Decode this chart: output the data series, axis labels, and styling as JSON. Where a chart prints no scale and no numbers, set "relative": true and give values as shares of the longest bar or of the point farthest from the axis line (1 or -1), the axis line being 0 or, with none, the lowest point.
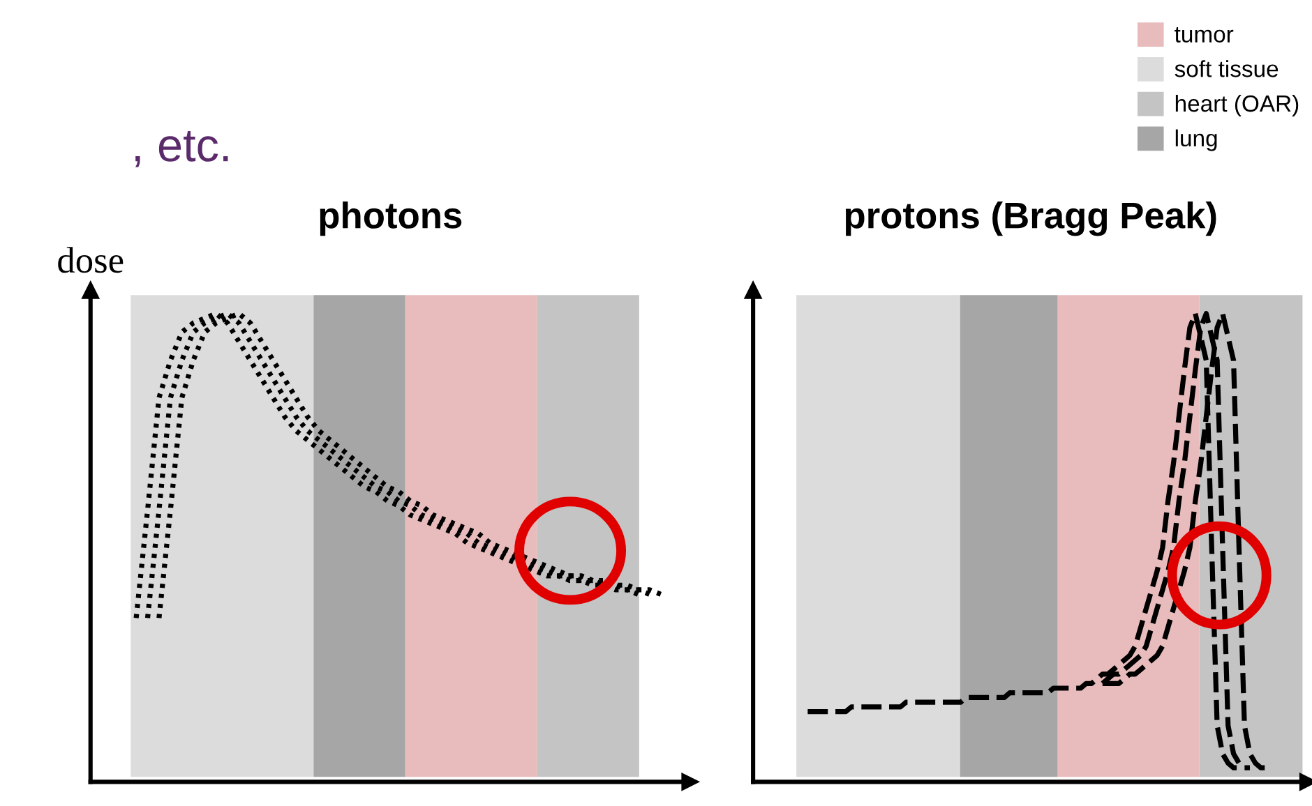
{
  "chart_data": [
    {
      "type": "line",
      "title": "photons",
      "ylabel": "dose",
      "relative": true,
      "tick_labels": false,
      "line_style": "dotted",
      "annotations": [
        ", etc."
      ],
      "categories": [
        null,
        null,
        null,
        null,
        null,
        null,
        null,
        null,
        null,
        null,
        null,
        null,
        null,
        null,
        null,
        null,
        null,
        null,
        null,
        null,
        null,
        null,
        null,
        null,
        null,
        null,
        null,
        null,
        null,
        null,
        null,
        null,
        null,
        null,
        null,
        null,
        null,
        null,
        null,
        null,
        null,
        null,
        null,
        null,
        null,
        null,
        null,
        null,
        null,
        null,
        null
      ],
      "series": [
        {
          "color": "#000000",
          "values": [
            null,
            null,
            null,
            null,
            0.35,
            0.58,
            0.82,
            0.9,
            0.96,
            0.98,
            0.99,
            1.0,
            0.98,
            0.94,
            0.9,
            0.86,
            0.82,
            0.78,
            0.75,
            0.73,
            0.71,
            0.69,
            0.67,
            0.65,
            0.63,
            0.62,
            0.6,
            0.59,
            0.57,
            0.56,
            0.55,
            0.54,
            0.53,
            0.51,
            0.5,
            0.49,
            0.48,
            0.47,
            0.46,
            0.45,
            0.44,
            0.44,
            0.43,
            0.43,
            0.42,
            0.42,
            0.41,
            0.41,
            0.4,
            null,
            null
          ]
        },
        {
          "color": "#000000",
          "values": [
            null,
            null,
            null,
            null,
            null,
            0.35,
            0.58,
            0.82,
            0.9,
            0.96,
            0.98,
            0.99,
            1.0,
            0.98,
            0.94,
            0.9,
            0.86,
            0.82,
            0.78,
            0.75,
            0.73,
            0.71,
            0.69,
            0.67,
            0.65,
            0.63,
            0.62,
            0.6,
            0.59,
            0.57,
            0.56,
            0.55,
            0.54,
            0.53,
            0.51,
            0.5,
            0.49,
            0.48,
            0.47,
            0.46,
            0.45,
            0.44,
            0.44,
            0.43,
            0.43,
            0.42,
            0.42,
            0.41,
            0.41,
            0.4,
            null
          ]
        },
        {
          "color": "#000000",
          "values": [
            null,
            null,
            null,
            null,
            null,
            null,
            0.35,
            0.58,
            0.82,
            0.9,
            0.96,
            0.98,
            0.99,
            1.0,
            0.98,
            0.94,
            0.9,
            0.86,
            0.82,
            0.78,
            0.75,
            0.73,
            0.71,
            0.69,
            0.67,
            0.65,
            0.63,
            0.62,
            0.6,
            0.59,
            0.57,
            0.56,
            0.55,
            0.54,
            0.53,
            0.51,
            0.5,
            0.49,
            0.48,
            0.47,
            0.46,
            0.45,
            0.44,
            0.44,
            0.43,
            0.43,
            0.42,
            0.42,
            0.41,
            0.41,
            0.4
          ]
        }
      ]
    },
    {
      "type": "line",
      "title": "protons (Bragg Peak)",
      "relative": true,
      "tick_labels": false,
      "line_style": "dashed",
      "annotations": [
        "tumor",
        "soft tissue",
        "heart (OAR)",
        "lung"
      ],
      "categories": [
        null,
        null,
        null,
        null,
        null,
        null,
        null,
        null,
        null,
        null,
        null,
        null,
        null,
        null,
        null,
        null,
        null,
        null,
        null,
        null,
        null,
        null,
        null,
        null,
        null,
        null,
        null,
        null,
        null,
        null,
        null,
        null,
        null,
        null,
        null,
        null,
        null,
        null,
        null,
        null,
        null,
        null,
        null,
        null,
        null,
        null,
        null,
        null,
        null,
        null,
        null,
        null,
        null,
        null,
        null,
        null,
        null,
        null,
        null,
        null,
        null,
        null,
        null,
        null,
        null,
        null,
        null,
        null,
        null,
        null,
        null,
        null,
        null,
        null,
        null,
        null,
        null,
        null,
        null,
        null,
        null,
        null,
        null,
        null,
        null,
        null,
        null,
        null,
        null,
        null,
        null,
        null,
        null,
        null,
        null
      ],
      "series": [
        {
          "color": "#000000",
          "values": [
            null,
            null,
            null,
            null,
            null,
            null,
            null,
            null,
            null,
            null,
            0.15,
            0.15,
            0.15,
            0.15,
            0.15,
            0.15,
            0.15,
            0.15,
            0.16,
            0.16,
            0.16,
            0.16,
            0.16,
            0.16,
            0.16,
            0.16,
            0.16,
            0.16,
            0.17,
            0.17,
            0.17,
            0.17,
            0.17,
            0.17,
            0.17,
            0.17,
            0.17,
            0.17,
            0.17,
            0.18,
            0.18,
            0.18,
            0.18,
            0.18,
            0.18,
            0.18,
            0.18,
            0.19,
            0.19,
            0.19,
            0.19,
            0.19,
            0.19,
            0.19,
            0.19,
            0.2,
            0.2,
            0.2,
            0.2,
            0.2,
            0.2,
            0.21,
            0.21,
            0.22,
            0.23,
            0.23,
            0.24,
            0.25,
            0.26,
            0.27,
            0.29,
            0.33,
            0.37,
            0.41,
            0.45,
            0.5,
            0.6,
            0.68,
            0.78,
            0.88,
            0.97,
            1.0,
            0.95,
            0.9,
            0.5,
            0.12,
            0.06,
            0.04,
            0.03,
            0.03,
            null,
            null,
            null,
            null,
            null
          ]
        },
        {
          "color": "#000000",
          "values": [
            null,
            null,
            null,
            null,
            null,
            null,
            null,
            null,
            null,
            null,
            null,
            null,
            null,
            null,
            null,
            null,
            null,
            null,
            null,
            null,
            null,
            null,
            null,
            null,
            null,
            null,
            null,
            null,
            null,
            null,
            null,
            null,
            null,
            null,
            null,
            null,
            null,
            null,
            null,
            null,
            null,
            null,
            null,
            null,
            null,
            null,
            null,
            null,
            null,
            null,
            null,
            null,
            null,
            null,
            null,
            null,
            null,
            null,
            null,
            null,
            null,
            null,
            null,
            null,
            0.21,
            0.22,
            0.23,
            0.23,
            0.24,
            0.25,
            0.26,
            0.27,
            0.29,
            0.33,
            0.37,
            0.41,
            0.45,
            0.5,
            0.6,
            0.68,
            0.78,
            0.88,
            0.97,
            1.0,
            0.95,
            0.9,
            0.5,
            0.12,
            0.06,
            0.04,
            0.03,
            0.03,
            null,
            null,
            null
          ]
        },
        {
          "color": "#000000",
          "values": [
            null,
            null,
            null,
            null,
            null,
            null,
            null,
            null,
            null,
            null,
            null,
            null,
            null,
            null,
            null,
            null,
            null,
            null,
            null,
            null,
            null,
            null,
            null,
            null,
            null,
            null,
            null,
            null,
            null,
            null,
            null,
            null,
            null,
            null,
            null,
            null,
            null,
            null,
            null,
            null,
            null,
            null,
            null,
            null,
            null,
            null,
            null,
            null,
            null,
            null,
            null,
            null,
            null,
            null,
            null,
            null,
            null,
            null,
            null,
            null,
            null,
            null,
            null,
            null,
            0.21,
            0.21,
            0.21,
            0.21,
            0.22,
            0.23,
            0.23,
            0.24,
            0.25,
            0.26,
            0.27,
            0.29,
            0.33,
            0.37,
            0.41,
            0.45,
            0.5,
            0.6,
            0.68,
            0.78,
            0.88,
            0.97,
            1.0,
            0.95,
            0.9,
            0.5,
            0.12,
            0.06,
            0.04,
            0.03,
            0.03
          ]
        }
      ]
    }
  ]
}
